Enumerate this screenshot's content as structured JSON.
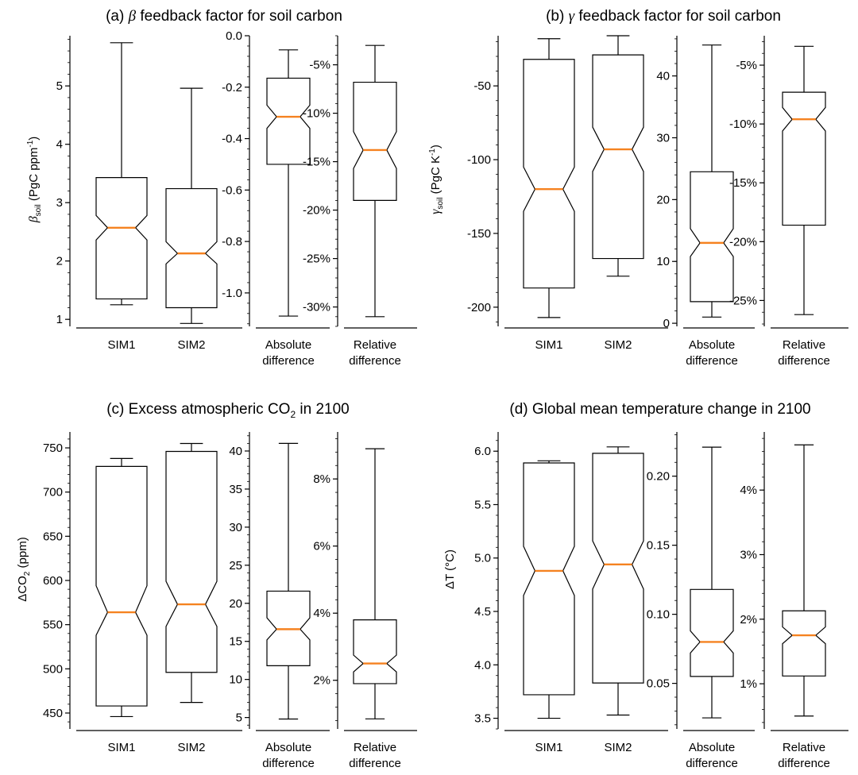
{
  "colors": {
    "median": "#f58220",
    "stroke": "#000000"
  },
  "panels": [
    {
      "title_prefix": "(a) ",
      "title_symbol": "β",
      "title_rest": " feedback factor for soil carbon"
    },
    {
      "title_prefix": "(b) ",
      "title_symbol": "γ",
      "title_rest": " feedback factor for soil carbon"
    },
    {
      "title_prefix": "(c) Excess atmospheric CO",
      "title_symbol": "",
      "title_rest": " in 2100",
      "title_sub": "2"
    },
    {
      "title_prefix": "(d) Global mean temperature change in 2100",
      "title_symbol": "",
      "title_rest": ""
    }
  ],
  "ylabels": {
    "a": {
      "symbol": "β",
      "sub": "soil",
      "unit": " (PgC ppm",
      "sup": "-1",
      "close": ")"
    },
    "b": {
      "symbol": "γ",
      "sub": "soil",
      "unit": " (PgC K",
      "sup": "-1",
      "close": ")"
    },
    "c": {
      "pre": "ΔCO",
      "sub": "2",
      "unit": " (ppm)"
    },
    "d": {
      "pre": "ΔT (°C)"
    }
  },
  "chart_data": [
    {
      "panel": "a",
      "subplot": "main",
      "type": "box",
      "categories": [
        "SIM1",
        "SIM2"
      ],
      "yticks": [
        1,
        2,
        3,
        4,
        5
      ],
      "ytick_labels": [
        "1",
        "2",
        "3",
        "4",
        "5"
      ],
      "ylim": [
        0.88,
        5.86
      ],
      "boxes": [
        {
          "whislo": 1.25,
          "q1": 1.35,
          "med": 2.57,
          "q3": 3.43,
          "whishi": 5.74,
          "notch_lo": 2.36,
          "notch_hi": 2.78
        },
        {
          "whislo": 0.93,
          "q1": 1.2,
          "med": 2.13,
          "q3": 3.24,
          "whishi": 4.96,
          "notch_lo": 1.95,
          "notch_hi": 2.33
        }
      ]
    },
    {
      "panel": "a",
      "subplot": "abs",
      "type": "box",
      "categories": [
        "Absolute",
        "difference"
      ],
      "yticks": [
        0.0,
        -0.2,
        -0.4,
        -0.6,
        -0.8,
        -1.0
      ],
      "ytick_labels": [
        "0.0",
        "-0.2",
        "-0.4",
        "-0.6",
        "-0.8",
        "-1.0"
      ],
      "ylim": [
        -1.13,
        0.0
      ],
      "boxes": [
        {
          "whislo": -1.09,
          "q1": -0.5,
          "med": -0.315,
          "q3": -0.165,
          "whishi": -0.055,
          "notch_lo": -0.36,
          "notch_hi": -0.27
        }
      ]
    },
    {
      "panel": "a",
      "subplot": "rel",
      "type": "box",
      "categories": [
        "Relative",
        "difference"
      ],
      "yticks": [
        -5,
        -10,
        -15,
        -20,
        -25,
        -30
      ],
      "ytick_labels": [
        "-5%",
        "-10%",
        "-15%",
        "-20%",
        "-25%",
        "-30%"
      ],
      "ylim": [
        -32.0,
        -2.0
      ],
      "boxes": [
        {
          "whislo": -31.0,
          "q1": -19.0,
          "med": -13.8,
          "q3": -6.8,
          "whishi": -3.0,
          "notch_lo": -15.7,
          "notch_hi": -11.9
        }
      ]
    },
    {
      "panel": "b",
      "subplot": "main",
      "type": "box",
      "categories": [
        "SIM1",
        "SIM2"
      ],
      "yticks": [
        -50,
        -100,
        -150,
        -200
      ],
      "ytick_labels": [
        "-50",
        "-100",
        "-150",
        "-200"
      ],
      "ylim": [
        -213,
        -16
      ],
      "boxes": [
        {
          "whislo": -207,
          "q1": -187,
          "med": -120,
          "q3": -32,
          "whishi": -18,
          "notch_lo": -135,
          "notch_hi": -105
        },
        {
          "whislo": -179,
          "q1": -167,
          "med": -93,
          "q3": -29,
          "whishi": -16,
          "notch_lo": -108,
          "notch_hi": -78
        }
      ]
    },
    {
      "panel": "b",
      "subplot": "abs",
      "type": "box",
      "categories": [
        "Absolute",
        "difference"
      ],
      "yticks": [
        0,
        10,
        20,
        30,
        40
      ],
      "ytick_labels": [
        "0",
        "10",
        "20",
        "30",
        "40"
      ],
      "ylim": [
        -0.5,
        46.5
      ],
      "boxes": [
        {
          "whislo": 1.0,
          "q1": 3.5,
          "med": 13.0,
          "q3": 24.5,
          "whishi": 45.0,
          "notch_lo": 10.8,
          "notch_hi": 15.3
        }
      ]
    },
    {
      "panel": "b",
      "subplot": "rel",
      "type": "box",
      "categories": [
        "Relative",
        "difference"
      ],
      "yticks": [
        -5,
        -10,
        -15,
        -20,
        -25
      ],
      "ytick_labels": [
        "-5%",
        "-10%",
        "-15%",
        "-20%",
        "-25%"
      ],
      "ylim": [
        -27.2,
        -2.5
      ],
      "boxes": [
        {
          "whislo": -26.2,
          "q1": -18.6,
          "med": -9.6,
          "q3": -7.3,
          "whishi": -3.4,
          "notch_lo": -10.6,
          "notch_hi": -8.6
        }
      ]
    },
    {
      "panel": "c",
      "subplot": "main",
      "type": "box",
      "categories": [
        "SIM1",
        "SIM2"
      ],
      "yticks": [
        450,
        500,
        550,
        600,
        650,
        700,
        750
      ],
      "ytick_labels": [
        "450",
        "500",
        "550",
        "600",
        "650",
        "700",
        "750"
      ],
      "ylim": [
        432,
        768
      ],
      "boxes": [
        {
          "whislo": 446,
          "q1": 458,
          "med": 564,
          "q3": 729,
          "whishi": 738,
          "notch_lo": 538,
          "notch_hi": 594
        },
        {
          "whislo": 462,
          "q1": 496,
          "med": 573,
          "q3": 746,
          "whishi": 755,
          "notch_lo": 548,
          "notch_hi": 599
        }
      ]
    },
    {
      "panel": "c",
      "subplot": "abs",
      "type": "box",
      "categories": [
        "Absolute",
        "difference"
      ],
      "yticks": [
        5,
        10,
        15,
        20,
        25,
        30,
        35,
        40
      ],
      "ytick_labels": [
        "5",
        "10",
        "15",
        "20",
        "25",
        "30",
        "35",
        "40"
      ],
      "ylim": [
        3.5,
        42.5
      ],
      "boxes": [
        {
          "whislo": 4.8,
          "q1": 11.8,
          "med": 16.6,
          "q3": 21.6,
          "whishi": 41.0,
          "notch_lo": 15.2,
          "notch_hi": 18.1
        }
      ]
    },
    {
      "panel": "c",
      "subplot": "rel",
      "type": "box",
      "categories": [
        "Relative",
        "difference"
      ],
      "yticks": [
        2,
        4,
        6,
        8
      ],
      "ytick_labels": [
        "2%",
        "4%",
        "6%",
        "8%"
      ],
      "ylim": [
        0.55,
        9.4
      ],
      "boxes": [
        {
          "whislo": 0.85,
          "q1": 1.9,
          "med": 2.5,
          "q3": 3.8,
          "whishi": 8.9,
          "notch_lo": 2.25,
          "notch_hi": 2.75
        }
      ]
    },
    {
      "panel": "d",
      "subplot": "main",
      "type": "box",
      "categories": [
        "SIM1",
        "SIM2"
      ],
      "yticks": [
        3.5,
        4.0,
        4.5,
        5.0,
        5.5,
        6.0
      ],
      "ytick_labels": [
        "3.5",
        "4.0",
        "4.5",
        "5.0",
        "5.5",
        "6.0"
      ],
      "ylim": [
        3.4,
        6.18
      ],
      "boxes": [
        {
          "whislo": 3.5,
          "q1": 3.72,
          "med": 4.88,
          "q3": 5.89,
          "whishi": 5.91,
          "notch_lo": 4.65,
          "notch_hi": 5.11
        },
        {
          "whislo": 3.53,
          "q1": 3.83,
          "med": 4.94,
          "q3": 5.98,
          "whishi": 6.04,
          "notch_lo": 4.71,
          "notch_hi": 5.16
        }
      ]
    },
    {
      "panel": "d",
      "subplot": "abs",
      "type": "box",
      "categories": [
        "Absolute",
        "difference"
      ],
      "yticks": [
        0.05,
        0.1,
        0.15,
        0.2
      ],
      "ytick_labels": [
        "0.05",
        "0.10",
        "0.15",
        "0.20"
      ],
      "ylim": [
        0.017,
        0.232
      ],
      "boxes": [
        {
          "whislo": 0.025,
          "q1": 0.055,
          "med": 0.08,
          "q3": 0.118,
          "whishi": 0.221,
          "notch_lo": 0.072,
          "notch_hi": 0.088
        }
      ]
    },
    {
      "panel": "d",
      "subplot": "rel",
      "type": "box",
      "categories": [
        "Relative",
        "difference"
      ],
      "yticks": [
        1,
        2,
        3,
        4
      ],
      "ytick_labels": [
        "1%",
        "2%",
        "3%",
        "4%"
      ],
      "ylim": [
        0.3,
        4.9
      ],
      "boxes": [
        {
          "whislo": 0.5,
          "q1": 1.12,
          "med": 1.75,
          "q3": 2.13,
          "whishi": 4.7,
          "notch_lo": 1.62,
          "notch_hi": 1.88
        }
      ]
    }
  ]
}
